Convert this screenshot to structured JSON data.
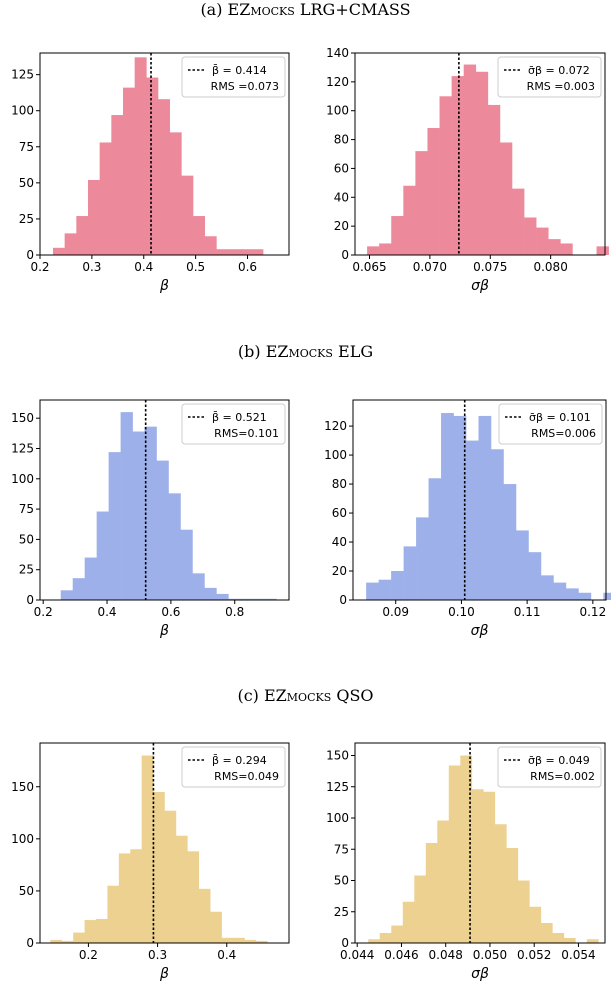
{
  "panels": [
    {
      "title_prefix": "(a) EZ",
      "title_sc": "mocks",
      "title_suffix": " LRG+CMASS",
      "color": "#ec8a9c"
    },
    {
      "title_prefix": "(b) EZ",
      "title_sc": "mocks",
      "title_suffix": " ELG",
      "color": "#9db0e9"
    },
    {
      "title_prefix": "(c) EZ",
      "title_sc": "mocks",
      "title_suffix": " QSO",
      "color": "#ecd190"
    }
  ],
  "chart_data": [
    {
      "type": "bar",
      "panel": "a",
      "variable": "beta",
      "xlabel": "β",
      "xlim": [
        0.2,
        0.68
      ],
      "ylim": [
        0,
        140
      ],
      "xticks": [
        0.2,
        0.3,
        0.4,
        0.5,
        0.6
      ],
      "xtick_labels": [
        "0.2",
        "0.3",
        "0.4",
        "0.5",
        "0.6"
      ],
      "yticks": [
        0,
        25,
        50,
        75,
        100,
        125
      ],
      "ytick_labels": [
        "0",
        "25",
        "50",
        "75",
        "100",
        "125"
      ],
      "bin_start": 0.225,
      "bin_width": 0.0225,
      "counts": [
        5,
        15,
        27,
        52,
        78,
        97,
        116,
        137,
        123,
        108,
        85,
        55,
        27,
        13,
        4,
        4,
        4,
        4
      ],
      "vline": 0.414,
      "legend": {
        "label": "β̄ = 0.414",
        "rms": "RMS =0.073",
        "position": "top-right"
      }
    },
    {
      "type": "bar",
      "panel": "a",
      "variable": "sigma_beta",
      "xlabel": "σβ",
      "xlim": [
        0.0638,
        0.0845
      ],
      "ylim": [
        0,
        140
      ],
      "xticks": [
        0.065,
        0.07,
        0.075,
        0.08
      ],
      "xtick_labels": [
        "0.065",
        "0.070",
        "0.075",
        "0.080"
      ],
      "yticks": [
        0,
        20,
        40,
        60,
        80,
        100,
        120,
        140
      ],
      "ytick_labels": [
        "0",
        "20",
        "40",
        "60",
        "80",
        "100",
        "120",
        "140"
      ],
      "bin_start": 0.0648,
      "bin_width": 0.001,
      "counts": [
        6,
        8,
        27,
        48,
        72,
        88,
        110,
        124,
        132,
        127,
        104,
        78,
        46,
        26,
        19,
        11,
        8,
        0,
        0,
        6
      ],
      "vline": 0.0724,
      "legend": {
        "label": "σ̄β = 0.072",
        "rms": "RMS =0.003",
        "position": "top-right"
      }
    },
    {
      "type": "bar",
      "panel": "b",
      "variable": "beta",
      "xlabel": "β",
      "xlim": [
        0.19,
        0.97
      ],
      "ylim": [
        0,
        165
      ],
      "xticks": [
        0.2,
        0.4,
        0.6,
        0.8
      ],
      "xtick_labels": [
        "0.2",
        "0.4",
        "0.6",
        "0.8"
      ],
      "yticks": [
        0,
        25,
        50,
        75,
        100,
        125,
        150
      ],
      "ytick_labels": [
        "0",
        "25",
        "50",
        "75",
        "100",
        "125",
        "150"
      ],
      "bin_start": 0.255,
      "bin_width": 0.0375,
      "counts": [
        8,
        18,
        35,
        73,
        122,
        155,
        139,
        143,
        115,
        88,
        58,
        22,
        10,
        5,
        1,
        1,
        1,
        1
      ],
      "vline": 0.521,
      "legend": {
        "label": "β̄ = 0.521",
        "rms": "RMS=0.101",
        "position": "top-right"
      }
    },
    {
      "type": "bar",
      "panel": "b",
      "variable": "sigma_beta",
      "xlabel": "σβ",
      "xlim": [
        0.0835,
        0.122
      ],
      "ylim": [
        0,
        138
      ],
      "xticks": [
        0.09,
        0.1,
        0.11,
        0.12
      ],
      "xtick_labels": [
        "0.09",
        "0.10",
        "0.11",
        "0.12"
      ],
      "yticks": [
        0,
        20,
        40,
        60,
        80,
        100,
        120
      ],
      "ytick_labels": [
        "0",
        "20",
        "40",
        "60",
        "80",
        "100",
        "120"
      ],
      "bin_start": 0.0855,
      "bin_width": 0.0019,
      "counts": [
        12,
        14,
        20,
        37,
        57,
        84,
        129,
        127,
        110,
        127,
        104,
        80,
        48,
        33,
        17,
        12,
        8,
        5,
        0,
        5
      ],
      "vline": 0.1005,
      "legend": {
        "label": "σ̄β = 0.101",
        "rms": "RMS=0.006",
        "position": "top-right"
      }
    },
    {
      "type": "bar",
      "panel": "c",
      "variable": "beta",
      "xlabel": "β",
      "xlim": [
        0.13,
        0.49
      ],
      "ylim": [
        0,
        192
      ],
      "xticks": [
        0.2,
        0.3,
        0.4
      ],
      "xtick_labels": [
        "0.2",
        "0.3",
        "0.4"
      ],
      "yticks": [
        0,
        50,
        100,
        150
      ],
      "ytick_labels": [
        "0",
        "50",
        "100",
        "150"
      ],
      "bin_start": 0.145,
      "bin_width": 0.0165,
      "counts": [
        3,
        2,
        10,
        22,
        23,
        55,
        86,
        90,
        180,
        145,
        127,
        103,
        88,
        52,
        30,
        5,
        5,
        3,
        2
      ],
      "vline": 0.294,
      "legend": {
        "label": "β̄ = 0.294",
        "rms": "RMS=0.049",
        "position": "top-right"
      }
    },
    {
      "type": "bar",
      "panel": "c",
      "variable": "sigma_beta",
      "xlabel": "σβ",
      "xlim": [
        0.0439,
        0.0552
      ],
      "ylim": [
        0,
        160
      ],
      "xticks": [
        0.044,
        0.046,
        0.048,
        0.05,
        0.052,
        0.054
      ],
      "xtick_labels": [
        "0.044",
        "0.046",
        "0.048",
        "0.050",
        "0.052",
        "0.054"
      ],
      "yticks": [
        0,
        25,
        50,
        75,
        100,
        125,
        150
      ],
      "ytick_labels": [
        "0",
        "25",
        "50",
        "75",
        "100",
        "125",
        "150"
      ],
      "bin_start": 0.0445,
      "bin_width": 0.00052,
      "counts": [
        3,
        8,
        14,
        33,
        54,
        80,
        98,
        142,
        150,
        123,
        121,
        95,
        76,
        50,
        29,
        16,
        8,
        4,
        0,
        3
      ],
      "vline": 0.0491,
      "legend": {
        "label": "σ̄β = 0.049",
        "rms": "RMS=0.002",
        "position": "top-right"
      }
    }
  ]
}
